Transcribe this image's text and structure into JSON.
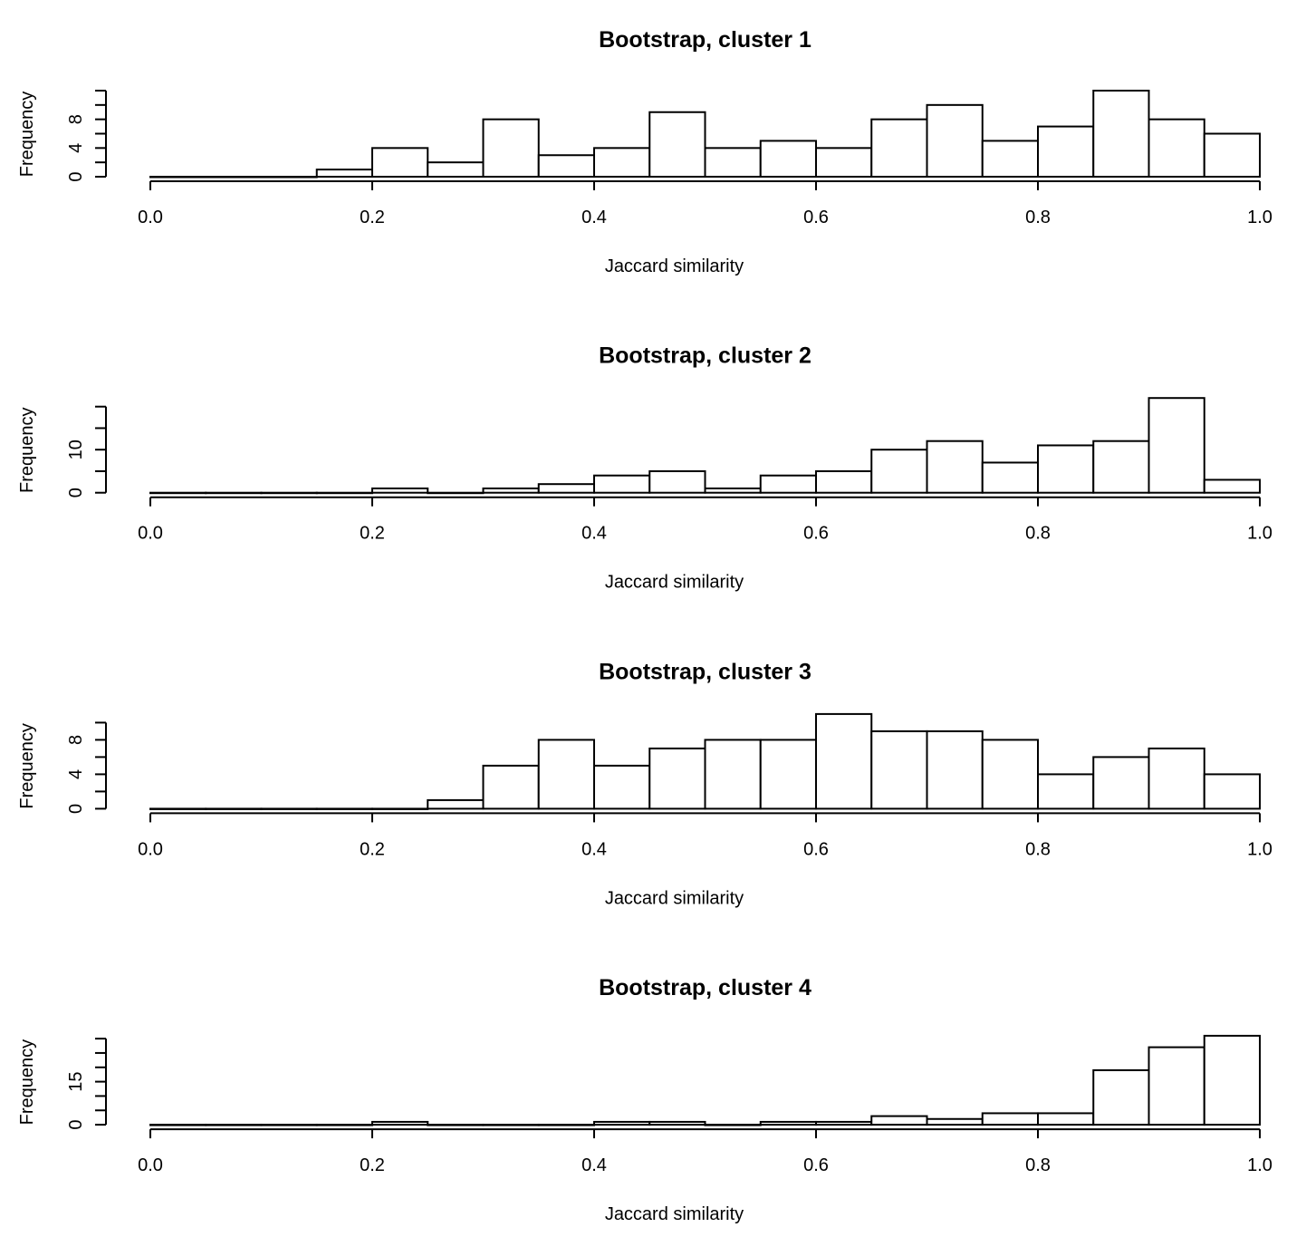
{
  "chart_data": [
    {
      "type": "bar",
      "title": "Bootstrap, cluster  1",
      "xlabel": "Jaccard similarity",
      "ylabel": "Frequency",
      "bin_width": 0.05,
      "x_start": 0.0,
      "values": [
        0,
        0,
        0,
        1,
        4,
        2,
        8,
        3,
        4,
        9,
        4,
        5,
        4,
        8,
        10,
        5,
        7,
        12,
        8,
        6
      ],
      "xlim": [
        0,
        1
      ],
      "ylim": [
        0,
        12
      ],
      "x_ticks": [
        "0.0",
        "0.2",
        "0.4",
        "0.6",
        "0.8",
        "1.0"
      ],
      "y_ticks": [
        0,
        4,
        8
      ],
      "y_tick_marks": [
        0,
        2,
        4,
        6,
        8,
        10,
        12
      ]
    },
    {
      "type": "bar",
      "title": "Bootstrap, cluster  2",
      "xlabel": "Jaccard similarity",
      "ylabel": "Frequency",
      "bin_width": 0.05,
      "x_start": 0.0,
      "values": [
        0,
        0,
        0,
        0,
        1,
        0,
        1,
        2,
        4,
        5,
        1,
        4,
        5,
        10,
        12,
        7,
        11,
        12,
        22,
        3
      ],
      "xlim": [
        0,
        1
      ],
      "ylim": [
        0,
        20
      ],
      "x_ticks": [
        "0.0",
        "0.2",
        "0.4",
        "0.6",
        "0.8",
        "1.0"
      ],
      "y_ticks": [
        0,
        10
      ],
      "y_tick_marks": [
        0,
        5,
        10,
        15,
        20
      ]
    },
    {
      "type": "bar",
      "title": "Bootstrap, cluster  3",
      "xlabel": "Jaccard similarity",
      "ylabel": "Frequency",
      "bin_width": 0.05,
      "x_start": 0.0,
      "values": [
        0,
        0,
        0,
        0,
        0,
        1,
        5,
        8,
        5,
        7,
        8,
        8,
        11,
        9,
        9,
        8,
        4,
        6,
        7,
        4
      ],
      "xlim": [
        0,
        1
      ],
      "ylim": [
        0,
        10
      ],
      "x_ticks": [
        "0.0",
        "0.2",
        "0.4",
        "0.6",
        "0.8",
        "1.0"
      ],
      "y_ticks": [
        0,
        4,
        8
      ],
      "y_tick_marks": [
        0,
        2,
        4,
        6,
        8,
        10
      ]
    },
    {
      "type": "bar",
      "title": "Bootstrap, cluster  4",
      "xlabel": "Jaccard similarity",
      "ylabel": "Frequency",
      "bin_width": 0.05,
      "x_start": 0.0,
      "values": [
        0,
        0,
        0,
        0,
        1,
        0,
        0,
        0,
        1,
        1,
        0,
        1,
        1,
        3,
        2,
        4,
        4,
        19,
        27,
        31
      ],
      "xlim": [
        0,
        1
      ],
      "ylim": [
        0,
        30
      ],
      "x_ticks": [
        "0.0",
        "0.2",
        "0.4",
        "0.6",
        "0.8",
        "1.0"
      ],
      "y_ticks": [
        0,
        15
      ],
      "y_tick_marks": [
        0,
        5,
        10,
        15,
        20,
        25,
        30
      ]
    }
  ]
}
